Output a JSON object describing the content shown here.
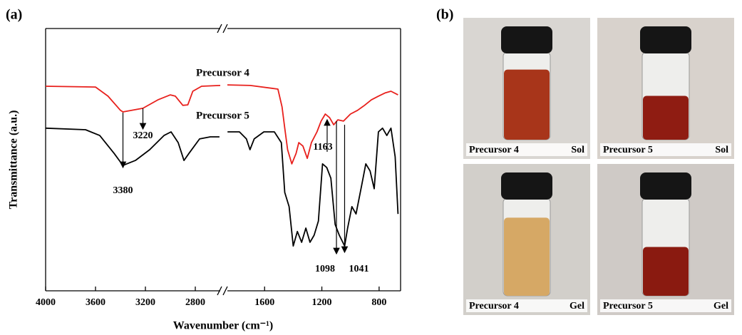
{
  "chart_data": {
    "type": "line",
    "x_label": "Wavenumber (cm⁻¹)",
    "y_label": "Transmittance (a.u.)",
    "xlim": [
      4000,
      650
    ],
    "x_break": [
      2600,
      1860
    ],
    "ylim": [
      0,
      100
    ],
    "xticks": [
      4000,
      3600,
      3200,
      2800,
      1600,
      1200,
      800
    ],
    "series": [
      {
        "name": "Precursor 4",
        "color": "#e8201c",
        "x": [
          4000,
          3600,
          3500,
          3400,
          3380,
          3220,
          3100,
          3000,
          2960,
          2900,
          2860,
          2820,
          2750,
          2600,
          null,
          1860,
          1700,
          1507,
          1478,
          1459,
          1439,
          1410,
          1380,
          1361,
          1332,
          1302,
          1273,
          1234,
          1205,
          1176,
          1146,
          1117,
          1088,
          1049,
          1000,
          951,
          902,
          854,
          805,
          756,
          717,
          668
        ],
        "values": [
          78,
          77.7,
          74.2,
          68.8,
          68.2,
          69.6,
          72.8,
          74.7,
          74.2,
          70.7,
          70.9,
          76.1,
          78,
          78.3,
          null,
          78.5,
          78.3,
          76.9,
          70.1,
          62,
          53.8,
          48.4,
          52.4,
          56.5,
          55.2,
          50.5,
          56.5,
          60.6,
          64.7,
          67.4,
          66,
          63.3,
          65.2,
          64.7,
          67.4,
          68.8,
          70.7,
          72.8,
          74.2,
          75.5,
          76.1,
          74.7
        ]
      },
      {
        "name": "Precursor 5",
        "color": "#000000",
        "x": [
          4000,
          3680,
          3566,
          3451,
          3380,
          3280,
          3166,
          3051,
          2994,
          2937,
          2891,
          2851,
          2766,
          2680,
          2606,
          null,
          1859,
          1776,
          1727,
          1702,
          1673,
          1605,
          1532,
          1483,
          1459,
          1429,
          1400,
          1371,
          1341,
          1312,
          1283,
          1254,
          1224,
          1195,
          1166,
          1137,
          1107,
          1078,
          1041,
          1020,
          990,
          961,
          922,
          893,
          863,
          834,
          805,
          776,
          746,
          717,
          688,
          668
        ],
        "values": [
          62,
          61.4,
          59.2,
          52.4,
          47.8,
          49.7,
          53.8,
          59.2,
          60.6,
          56.5,
          49.7,
          52.4,
          57.9,
          58.7,
          58.7,
          null,
          60.6,
          60.6,
          57.9,
          53.8,
          57.9,
          60.6,
          60.6,
          56.5,
          37.5,
          32.1,
          17.1,
          22.6,
          18.5,
          23.9,
          18.5,
          21.2,
          26.6,
          48.4,
          47,
          42.9,
          25.3,
          21.2,
          17.1,
          23.9,
          32.1,
          29.3,
          40.2,
          48.4,
          45.7,
          38.9,
          60.6,
          62,
          59.2,
          62,
          51.1,
          29.3
        ]
      }
    ],
    "peaks": [
      3380,
      3220,
      1163,
      1098,
      1041
    ]
  },
  "panel_labels": [
    "(a)",
    "(b)"
  ],
  "photos": [
    {
      "sample": "Precursor 4",
      "state": "Sol"
    },
    {
      "sample": "Precursor 5",
      "state": "Sol"
    },
    {
      "sample": "Precursor 4",
      "state": "Gel"
    },
    {
      "sample": "Precursor 5",
      "state": "Gel"
    }
  ]
}
